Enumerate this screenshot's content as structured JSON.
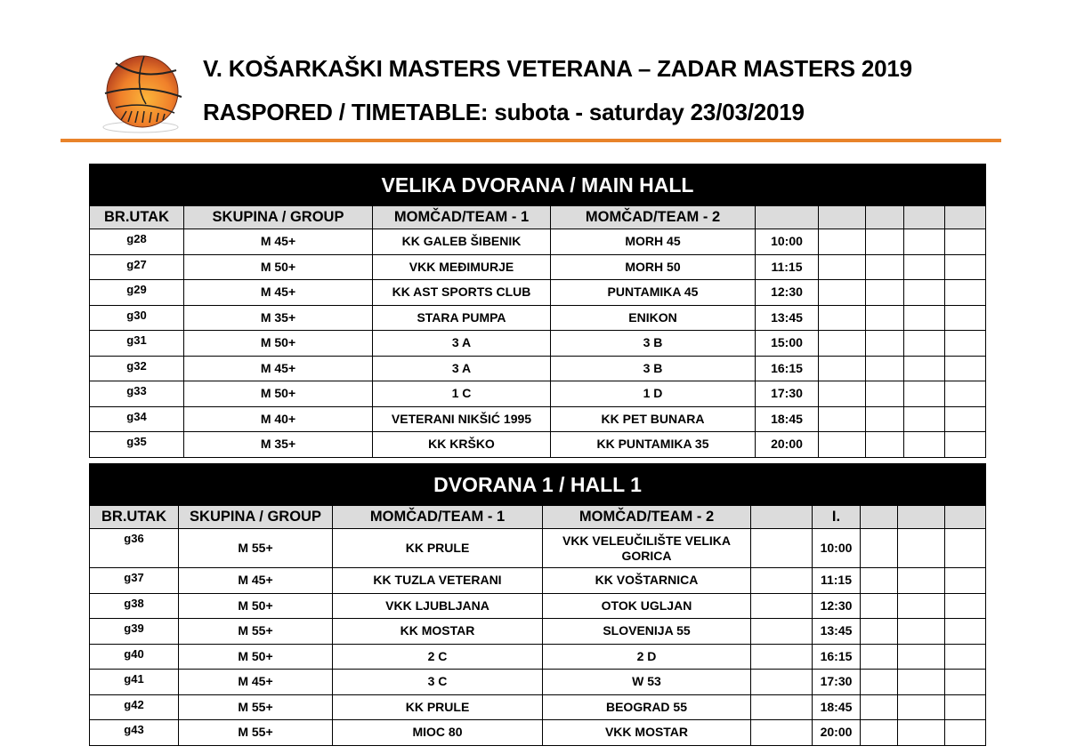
{
  "header": {
    "title_line1": "V. KOŠARKAŠKI MASTERS VETERANA – ZADAR MASTERS 2019",
    "title_line2": "RASPORED / TIMETABLE: subota - saturday 23/03/2019",
    "logo": "basketball-logo",
    "accent_color": "#e8832a"
  },
  "tables": [
    {
      "hall": "VELIKA DVORANA / MAIN HALL",
      "columns": [
        "BR.UTAK",
        "SKUPINA / GROUP",
        "MOMČAD/TEAM  - 1",
        "MOMČAD/TEAM - 2",
        "",
        "",
        "",
        "",
        ""
      ],
      "rows": [
        {
          "no": "g28",
          "group": "M 45+",
          "team1": "KK GALEB ŠIBENIK",
          "team2": "MORH 45",
          "time": "10:00"
        },
        {
          "no": "g27",
          "group": "M 50+",
          "team1": "VKK MEĐIMURJE",
          "team2": "MORH 50",
          "time": "11:15"
        },
        {
          "no": "g29",
          "group": "M 45+",
          "team1": "KK AST SPORTS CLUB",
          "team2": "PUNTAMIKA 45",
          "time": "12:30"
        },
        {
          "no": "g30",
          "group": "M 35+",
          "team1": "STARA PUMPA",
          "team2": "ENIKON",
          "time": "13:45"
        },
        {
          "no": "g31",
          "group": "M 50+",
          "team1": "3 A",
          "team2": "3 B",
          "time": "15:00"
        },
        {
          "no": "g32",
          "group": "M 45+",
          "team1": "3 A",
          "team2": "3 B",
          "time": "16:15"
        },
        {
          "no": "g33",
          "group": "M 50+",
          "team1": "1 C",
          "team2": "1 D",
          "time": "17:30"
        },
        {
          "no": "g34",
          "group": "M 40+",
          "team1": "VETERANI NIKŠIĆ 1995",
          "team2": "KK PET BUNARA",
          "time": "18:45"
        },
        {
          "no": "g35",
          "group": "M 35+",
          "team1": "KK KRŠKO",
          "team2": "KK PUNTAMIKA 35",
          "time": "20:00"
        }
      ]
    },
    {
      "hall": "DVORANA 1 / HALL 1",
      "columns": [
        "BR.UTAK",
        "SKUPINA / GROUP",
        "MOMČAD/TEAM  - 1",
        "MOMČAD/TEAM - 2",
        "",
        "I.",
        "",
        "",
        ""
      ],
      "rows": [
        {
          "no": "g36",
          "group": "M 55+",
          "team1": "KK PRULE",
          "team2": "VKK VELEUČILIŠTE VELIKA GORICA",
          "time": "10:00"
        },
        {
          "no": "g37",
          "group": "M 45+",
          "team1": "KK TUZLA VETERANI",
          "team2": "KK VOŠTARNICA",
          "time": "11:15"
        },
        {
          "no": "g38",
          "group": "M 50+",
          "team1": "VKK LJUBLJANA",
          "team2": "OTOK UGLJAN",
          "time": "12:30"
        },
        {
          "no": "g39",
          "group": "M 55+",
          "team1": "KK MOSTAR",
          "team2": "SLOVENIJA 55",
          "time": "13:45"
        },
        {
          "no": "g40",
          "group": "M 50+",
          "team1": "2 C",
          "team2": "2 D",
          "time": "16:15"
        },
        {
          "no": "g41",
          "group": "M 45+",
          "team1": "3 C",
          "team2": "W 53",
          "time": "17:30"
        },
        {
          "no": "g42",
          "group": "M 55+",
          "team1": "KK PRULE",
          "team2": "BEOGRAD 55",
          "time": "18:45"
        },
        {
          "no": "g43",
          "group": "M 55+",
          "team1": "MIOC 80",
          "team2": "VKK MOSTAR",
          "time": "20:00"
        }
      ]
    }
  ]
}
